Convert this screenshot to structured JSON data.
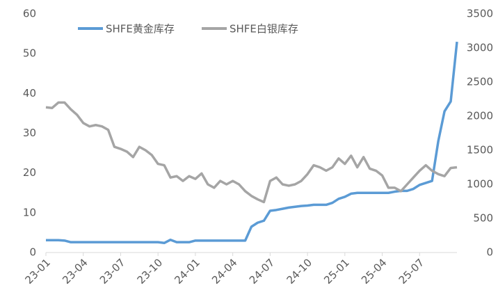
{
  "chart_data": {
    "type": "line",
    "x": [
      0,
      0.5,
      1,
      1.5,
      2,
      2.5,
      3,
      3.5,
      4,
      4.5,
      5,
      5.5,
      6,
      6.5,
      7,
      7.5,
      8,
      8.5,
      9,
      9.5,
      10,
      10.5,
      11,
      11.5,
      12,
      12.5,
      13,
      13.5,
      14,
      14.5,
      15,
      15.5,
      16,
      16.5,
      17,
      17.5,
      18,
      18.5,
      19,
      19.5,
      20,
      20.5,
      21,
      21.5,
      22,
      22.5,
      23,
      23.5,
      24,
      24.5,
      25,
      25.5,
      26,
      26.5,
      27,
      27.5,
      28,
      28.5,
      29,
      29.5,
      30,
      30.5,
      31,
      31.5,
      32,
      32.5,
      33
    ],
    "xlim": [
      0,
      33
    ],
    "xticks": [
      {
        "value": 0,
        "label": "23-01"
      },
      {
        "value": 3,
        "label": "23-04"
      },
      {
        "value": 6,
        "label": "23-07"
      },
      {
        "value": 9,
        "label": "23-10"
      },
      {
        "value": 12,
        "label": "24-01"
      },
      {
        "value": 15,
        "label": "24-04"
      },
      {
        "value": 18,
        "label": "24-07"
      },
      {
        "value": 21,
        "label": "24-10"
      },
      {
        "value": 24,
        "label": "25-01"
      },
      {
        "value": 27,
        "label": "25-04"
      },
      {
        "value": 30,
        "label": "25-07"
      }
    ],
    "ylim": [
      0,
      60
    ],
    "yticks": [
      0,
      10,
      20,
      30,
      40,
      50,
      60
    ],
    "y2lim": [
      0,
      3500
    ],
    "y2ticks": [
      0,
      500,
      1000,
      1500,
      2000,
      2500,
      3000,
      3500
    ],
    "grid": false,
    "legend": "top",
    "series": [
      {
        "name": "SHFE黄金库存",
        "color": "#5b9bd5",
        "values": [
          3.1,
          3.1,
          3.1,
          3.0,
          2.6,
          2.6,
          2.6,
          2.6,
          2.6,
          2.6,
          2.6,
          2.6,
          2.6,
          2.6,
          2.6,
          2.6,
          2.6,
          2.6,
          2.6,
          2.4,
          3.2,
          2.6,
          2.6,
          2.6,
          3.0,
          3.0,
          3.0,
          3.0,
          3.0,
          3.0,
          3.0,
          3.0,
          3.0,
          6.5,
          7.5,
          8,
          10.5,
          10.7,
          11,
          11.3,
          11.5,
          11.7,
          11.8,
          12,
          12,
          12,
          12.5,
          13.5,
          14,
          14.8,
          15,
          15,
          15,
          15,
          15,
          15,
          15.3,
          15.5,
          15.5,
          16,
          17,
          17.5,
          18,
          28,
          35.5,
          38,
          53
        ]
      },
      {
        "name": "SHFE白银库存",
        "color": "#a5a5a5",
        "axis": "y2",
        "values": [
          2130,
          2120,
          2200,
          2200,
          2100,
          2020,
          1900,
          1850,
          1870,
          1850,
          1800,
          1550,
          1520,
          1480,
          1400,
          1550,
          1500,
          1430,
          1300,
          1280,
          1100,
          1120,
          1050,
          1120,
          1080,
          1160,
          1000,
          950,
          1050,
          1000,
          1050,
          1000,
          900,
          830,
          780,
          740,
          1050,
          1100,
          1000,
          980,
          1000,
          1050,
          1150,
          1280,
          1250,
          1200,
          1250,
          1380,
          1300,
          1420,
          1250,
          1400,
          1230,
          1200,
          1130,
          950,
          950,
          900,
          1000,
          1100,
          1200,
          1280,
          1200,
          1150,
          1120,
          1240,
          1250
        ]
      }
    ]
  }
}
